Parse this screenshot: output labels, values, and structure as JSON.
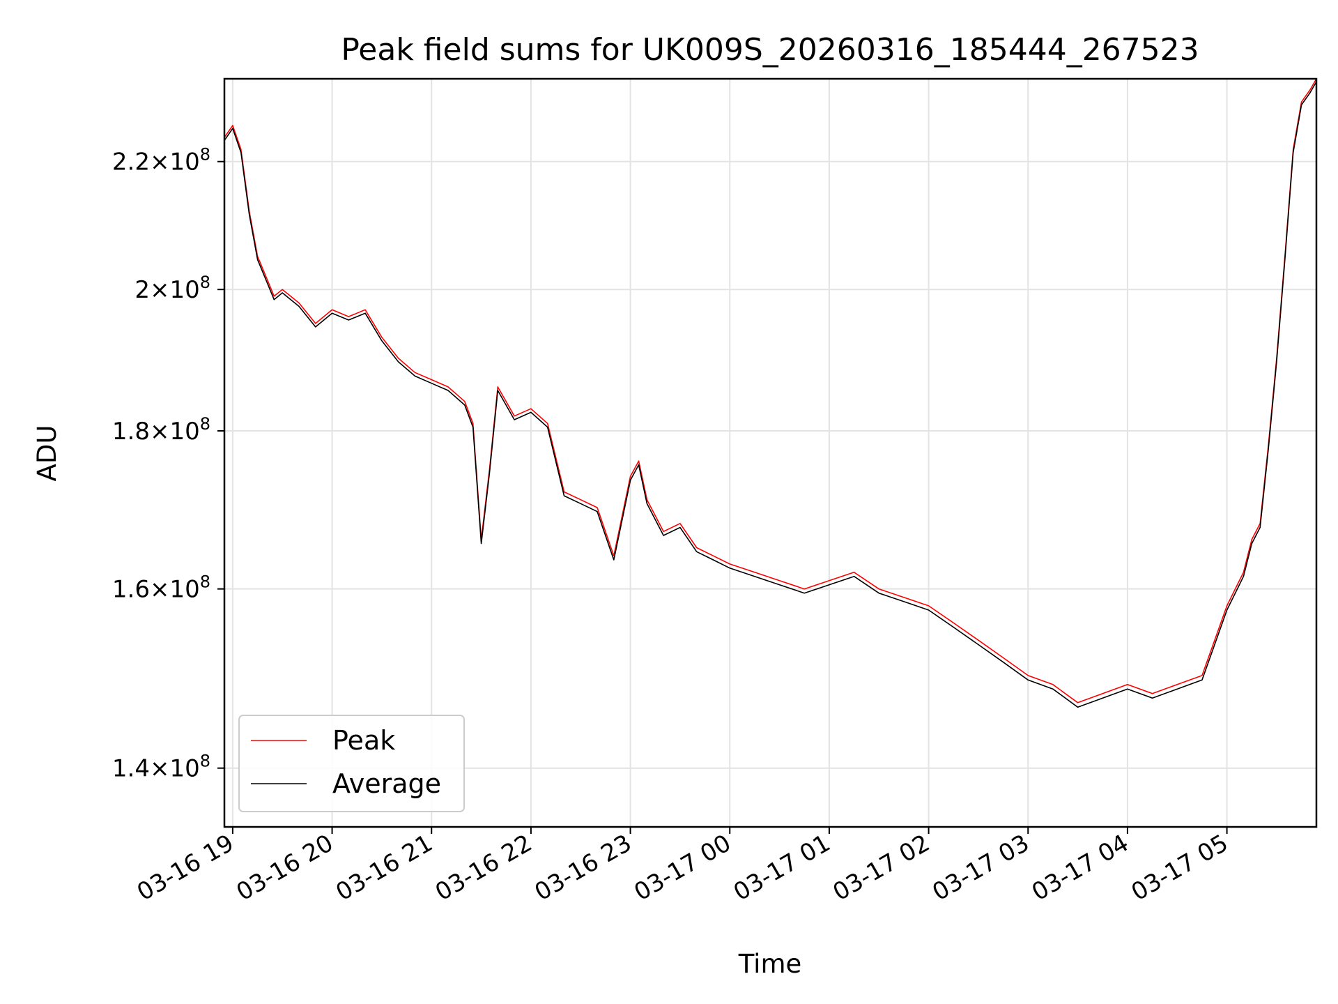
{
  "chart_data": {
    "type": "line",
    "title": "Peak field sums for UK009S_20260316_185444_267523",
    "xlabel": "Time",
    "ylabel": "ADU",
    "y_scale": "log",
    "ylim": [
      134000000,
      234000000
    ],
    "xlim": [
      "2026-03-16T18:55:00",
      "2026-03-17T05:54:00"
    ],
    "grid": true,
    "legend_position": "lower-left",
    "x_ticks": [
      {
        "at": "2026-03-16T19:00:00",
        "label": "03-16 19"
      },
      {
        "at": "2026-03-16T20:00:00",
        "label": "03-16 20"
      },
      {
        "at": "2026-03-16T21:00:00",
        "label": "03-16 21"
      },
      {
        "at": "2026-03-16T22:00:00",
        "label": "03-16 22"
      },
      {
        "at": "2026-03-16T23:00:00",
        "label": "03-16 23"
      },
      {
        "at": "2026-03-17T00:00:00",
        "label": "03-17 00"
      },
      {
        "at": "2026-03-17T01:00:00",
        "label": "03-17 01"
      },
      {
        "at": "2026-03-17T02:00:00",
        "label": "03-17 02"
      },
      {
        "at": "2026-03-17T03:00:00",
        "label": "03-17 03"
      },
      {
        "at": "2026-03-17T04:00:00",
        "label": "03-17 04"
      },
      {
        "at": "2026-03-17T05:00:00",
        "label": "03-17 05"
      }
    ],
    "y_ticks": [
      {
        "value": 140000000,
        "mantissa": "1.4",
        "base": "10",
        "exp": "8"
      },
      {
        "value": 160000000,
        "mantissa": "1.6",
        "base": "10",
        "exp": "8"
      },
      {
        "value": 180000000,
        "mantissa": "1.8",
        "base": "10",
        "exp": "8"
      },
      {
        "value": 200000000,
        "mantissa": "2",
        "base": "10",
        "exp": "8"
      },
      {
        "value": 220000000,
        "mantissa": "2.2",
        "base": "10",
        "exp": "8"
      }
    ],
    "series": [
      {
        "name": "Peak",
        "color": "#ff0000",
        "x": [
          "2026-03-16T18:55:00",
          "2026-03-16T19:00:00",
          "2026-03-16T19:05:00",
          "2026-03-16T19:10:00",
          "2026-03-16T19:15:00",
          "2026-03-16T19:20:00",
          "2026-03-16T19:25:00",
          "2026-03-16T19:30:00",
          "2026-03-16T19:40:00",
          "2026-03-16T19:50:00",
          "2026-03-16T20:00:00",
          "2026-03-16T20:10:00",
          "2026-03-16T20:20:00",
          "2026-03-16T20:30:00",
          "2026-03-16T20:40:00",
          "2026-03-16T20:50:00",
          "2026-03-16T21:00:00",
          "2026-03-16T21:10:00",
          "2026-03-16T21:20:00",
          "2026-03-16T21:25:00",
          "2026-03-16T21:30:00",
          "2026-03-16T21:35:00",
          "2026-03-16T21:40:00",
          "2026-03-16T21:50:00",
          "2026-03-16T22:00:00",
          "2026-03-16T22:10:00",
          "2026-03-16T22:20:00",
          "2026-03-16T22:30:00",
          "2026-03-16T22:40:00",
          "2026-03-16T22:50:00",
          "2026-03-16T23:00:00",
          "2026-03-16T23:05:00",
          "2026-03-16T23:10:00",
          "2026-03-16T23:20:00",
          "2026-03-16T23:30:00",
          "2026-03-16T23:40:00",
          "2026-03-16T23:50:00",
          "2026-03-17T00:00:00",
          "2026-03-17T00:15:00",
          "2026-03-17T00:30:00",
          "2026-03-17T00:45:00",
          "2026-03-17T01:00:00",
          "2026-03-17T01:15:00",
          "2026-03-17T01:30:00",
          "2026-03-17T01:45:00",
          "2026-03-17T02:00:00",
          "2026-03-17T02:15:00",
          "2026-03-17T02:30:00",
          "2026-03-17T02:45:00",
          "2026-03-17T03:00:00",
          "2026-03-17T03:15:00",
          "2026-03-17T03:30:00",
          "2026-03-17T03:45:00",
          "2026-03-17T04:00:00",
          "2026-03-17T04:15:00",
          "2026-03-17T04:30:00",
          "2026-03-17T04:45:00",
          "2026-03-17T05:00:00",
          "2026-03-17T05:10:00",
          "2026-03-17T05:15:00",
          "2026-03-17T05:20:00",
          "2026-03-17T05:25:00",
          "2026-03-17T05:30:00",
          "2026-03-17T05:35:00",
          "2026-03-17T05:40:00",
          "2026-03-17T05:45:00",
          "2026-03-17T05:50:00",
          "2026-03-17T05:54:00"
        ],
        "values": [
          224000000,
          226000000,
          222000000,
          212000000,
          205000000,
          202000000,
          199000000,
          200000000,
          198000000,
          195000000,
          197000000,
          196000000,
          197000000,
          193000000,
          190000000,
          188000000,
          187000000,
          186000000,
          184000000,
          181000000,
          166000000,
          175000000,
          186000000,
          182000000,
          183000000,
          181000000,
          172000000,
          171000000,
          170000000,
          164000000,
          174000000,
          176000000,
          171000000,
          167000000,
          168000000,
          165000000,
          164000000,
          163000000,
          162000000,
          161000000,
          160000000,
          161000000,
          162000000,
          160000000,
          159000000,
          158000000,
          156000000,
          154000000,
          152000000,
          150000000,
          149000000,
          147000000,
          148000000,
          149000000,
          148000000,
          149000000,
          150000000,
          158000000,
          162000000,
          166000000,
          168000000,
          178000000,
          190000000,
          205000000,
          222000000,
          230000000,
          232000000,
          234000000
        ]
      },
      {
        "name": "Average",
        "color": "#000000",
        "x": [
          "2026-03-16T18:55:00",
          "2026-03-16T19:00:00",
          "2026-03-16T19:05:00",
          "2026-03-16T19:10:00",
          "2026-03-16T19:15:00",
          "2026-03-16T19:20:00",
          "2026-03-16T19:25:00",
          "2026-03-16T19:30:00",
          "2026-03-16T19:40:00",
          "2026-03-16T19:50:00",
          "2026-03-16T20:00:00",
          "2026-03-16T20:10:00",
          "2026-03-16T20:20:00",
          "2026-03-16T20:30:00",
          "2026-03-16T20:40:00",
          "2026-03-16T20:50:00",
          "2026-03-16T21:00:00",
          "2026-03-16T21:10:00",
          "2026-03-16T21:20:00",
          "2026-03-16T21:25:00",
          "2026-03-16T21:30:00",
          "2026-03-16T21:35:00",
          "2026-03-16T21:40:00",
          "2026-03-16T21:50:00",
          "2026-03-16T22:00:00",
          "2026-03-16T22:10:00",
          "2026-03-16T22:20:00",
          "2026-03-16T22:30:00",
          "2026-03-16T22:40:00",
          "2026-03-16T22:50:00",
          "2026-03-16T23:00:00",
          "2026-03-16T23:05:00",
          "2026-03-16T23:10:00",
          "2026-03-16T23:20:00",
          "2026-03-16T23:30:00",
          "2026-03-16T23:40:00",
          "2026-03-16T23:50:00",
          "2026-03-17T00:00:00",
          "2026-03-17T00:15:00",
          "2026-03-17T00:30:00",
          "2026-03-17T00:45:00",
          "2026-03-17T01:00:00",
          "2026-03-17T01:15:00",
          "2026-03-17T01:30:00",
          "2026-03-17T01:45:00",
          "2026-03-17T02:00:00",
          "2026-03-17T02:15:00",
          "2026-03-17T02:30:00",
          "2026-03-17T02:45:00",
          "2026-03-17T03:00:00",
          "2026-03-17T03:15:00",
          "2026-03-17T03:30:00",
          "2026-03-17T03:45:00",
          "2026-03-17T04:00:00",
          "2026-03-17T04:15:00",
          "2026-03-17T04:30:00",
          "2026-03-17T04:45:00",
          "2026-03-17T05:00:00",
          "2026-03-17T05:10:00",
          "2026-03-17T05:15:00",
          "2026-03-17T05:20:00",
          "2026-03-17T05:25:00",
          "2026-03-17T05:30:00",
          "2026-03-17T05:35:00",
          "2026-03-17T05:40:00",
          "2026-03-17T05:45:00",
          "2026-03-17T05:50:00",
          "2026-03-17T05:54:00"
        ],
        "values": [
          223500000,
          225500000,
          221500000,
          211500000,
          204500000,
          201500000,
          198500000,
          199500000,
          197500000,
          194500000,
          196500000,
          195500000,
          196500000,
          192500000,
          189500000,
          187500000,
          186500000,
          185500000,
          183500000,
          180500000,
          165500000,
          174500000,
          185500000,
          181500000,
          182500000,
          180500000,
          171500000,
          170500000,
          169500000,
          163500000,
          173500000,
          175500000,
          170500000,
          166500000,
          167500000,
          164500000,
          163500000,
          162500000,
          161500000,
          160500000,
          159500000,
          160500000,
          161500000,
          159500000,
          158500000,
          157500000,
          155500000,
          153500000,
          151500000,
          149500000,
          148500000,
          146500000,
          147500000,
          148500000,
          147500000,
          148500000,
          149500000,
          157500000,
          161500000,
          165500000,
          167500000,
          177500000,
          189500000,
          204500000,
          221500000,
          229500000,
          231500000,
          233500000
        ]
      }
    ]
  }
}
